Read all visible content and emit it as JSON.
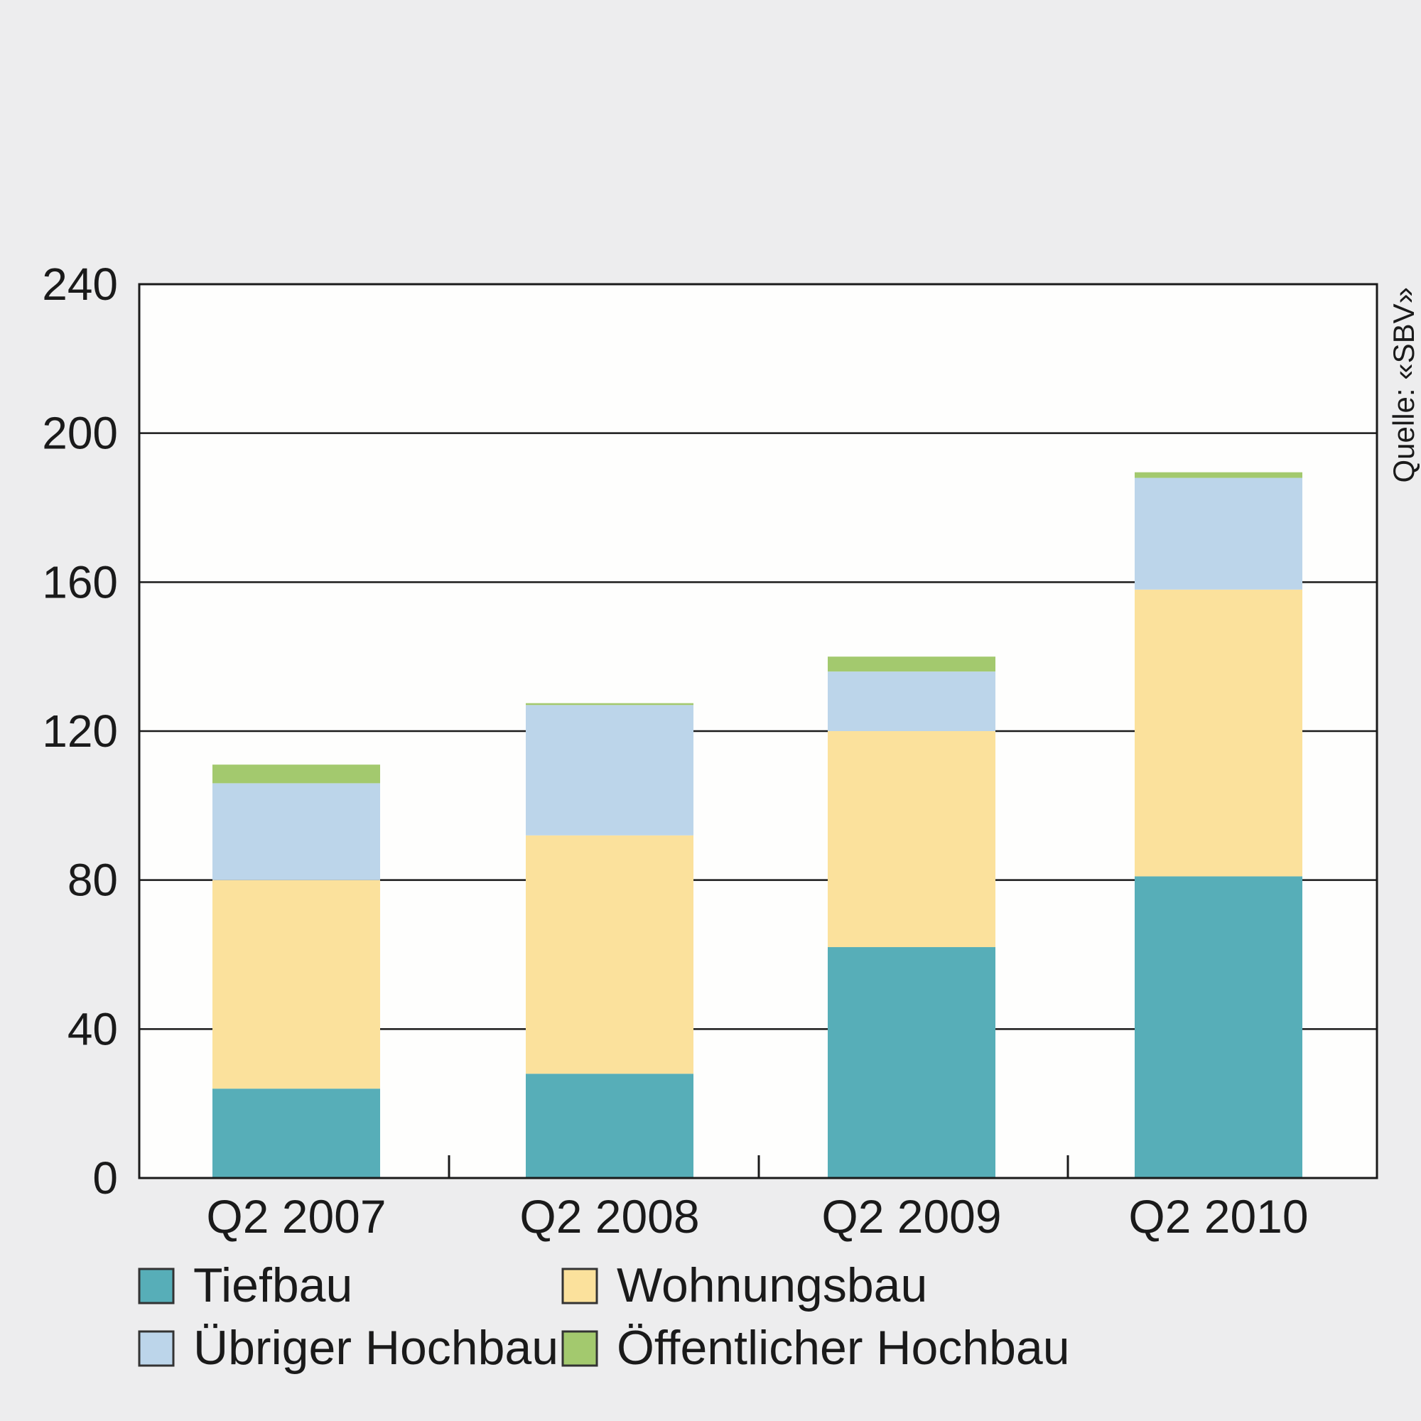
{
  "chart_data": {
    "type": "bar",
    "stacked": true,
    "categories": [
      "Q2 2007",
      "Q2 2008",
      "Q2 2009",
      "Q2 2010"
    ],
    "series": [
      {
        "name": "Tiefbau",
        "color": "#57aeb8",
        "values": [
          24,
          28,
          62,
          81
        ]
      },
      {
        "name": "Wohnungsbau",
        "color": "#fbe19c",
        "values": [
          56,
          64,
          58,
          77
        ]
      },
      {
        "name": "Übriger Hochbau",
        "color": "#bcd5ea",
        "values": [
          26,
          35,
          16,
          30
        ]
      },
      {
        "name": "Öffentlicher Hochbau",
        "color": "#a3c96e",
        "values": [
          5,
          0.5,
          4,
          1.5
        ]
      }
    ],
    "ylim": [
      0,
      240
    ],
    "yticks": [
      0,
      40,
      80,
      120,
      160,
      200,
      240
    ],
    "grid": true,
    "legend_position": "bottom",
    "source": "Quelle: «SBV»",
    "title": "",
    "xlabel": "",
    "ylabel": ""
  },
  "legend_order": [
    0,
    1,
    2,
    3
  ]
}
